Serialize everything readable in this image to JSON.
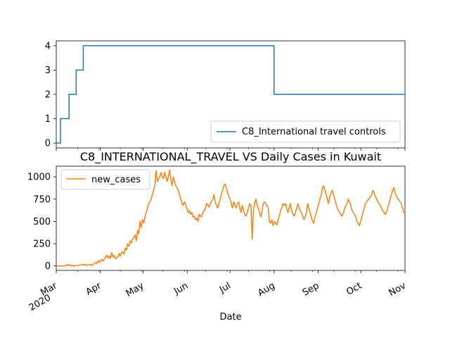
{
  "chart_data": [
    {
      "type": "line",
      "title": "",
      "xlabel": "",
      "ylabel": "",
      "ylim": [
        -0.2,
        4.2
      ],
      "yticks": [
        0,
        1,
        2,
        3,
        4
      ],
      "legend_position": "lower-right",
      "series": [
        {
          "name": "C8_International travel controls",
          "color": "#1f77b4",
          "points": [
            [
              "2020-03-01",
              0
            ],
            [
              "2020-03-04",
              0
            ],
            [
              "2020-03-04",
              1
            ],
            [
              "2020-03-10",
              1
            ],
            [
              "2020-03-10",
              2
            ],
            [
              "2020-03-15",
              2
            ],
            [
              "2020-03-15",
              3
            ],
            [
              "2020-03-20",
              3
            ],
            [
              "2020-03-20",
              4
            ],
            [
              "2020-08-01",
              4
            ],
            [
              "2020-08-01",
              2
            ],
            [
              "2020-11-01",
              2
            ]
          ]
        }
      ]
    },
    {
      "type": "line",
      "title": "C8_INTERNATIONAL_TRAVEL VS Daily Cases in Kuwait",
      "xlabel": "Date",
      "ylabel": "",
      "ylim": [
        -50,
        1120
      ],
      "yticks": [
        0,
        250,
        500,
        750,
        1000
      ],
      "xlim": [
        "2020-03-01",
        "2020-11-01"
      ],
      "xticks": [
        {
          "date": "2020-03-01",
          "label": "Mar",
          "label2": "2020"
        },
        {
          "date": "2020-04-01",
          "label": "Apr"
        },
        {
          "date": "2020-05-01",
          "label": "May"
        },
        {
          "date": "2020-06-01",
          "label": "Jun"
        },
        {
          "date": "2020-07-01",
          "label": "Jul"
        },
        {
          "date": "2020-08-01",
          "label": "Aug"
        },
        {
          "date": "2020-09-01",
          "label": "Sep"
        },
        {
          "date": "2020-10-01",
          "label": "Oct"
        },
        {
          "date": "2020-11-01",
          "label": "Nov"
        }
      ],
      "legend_position": "upper-left",
      "series": [
        {
          "name": "new_cases",
          "color": "#ff7f0e",
          "start_date": "2020-03-01",
          "values": [
            0,
            0,
            0,
            0,
            0,
            0,
            0,
            0,
            10,
            15,
            5,
            15,
            0,
            5,
            0,
            0,
            5,
            10,
            5,
            10,
            15,
            10,
            20,
            10,
            15,
            5,
            10,
            15,
            15,
            5,
            20,
            25,
            40,
            30,
            60,
            40,
            60,
            75,
            55,
            80,
            100,
            120,
            90,
            110,
            85,
            150,
            100,
            120,
            80,
            90,
            100,
            140,
            110,
            150,
            160,
            130,
            200,
            180,
            250,
            220,
            280,
            260,
            300,
            320,
            350,
            280,
            400,
            360,
            500,
            430,
            520,
            480,
            550,
            600,
            650,
            700,
            720,
            750,
            800,
            850,
            900,
            1070,
            950,
            980,
            1000,
            1050,
            1000,
            980,
            1050,
            1000,
            950,
            1000,
            1080,
            970,
            900,
            1000,
            950,
            900,
            880,
            850,
            800,
            750,
            700,
            680,
            720,
            690,
            650,
            600,
            620,
            580,
            600,
            550,
            560,
            520,
            540,
            500,
            580,
            560,
            550,
            600,
            620,
            650,
            700,
            680,
            660,
            700,
            720,
            750,
            800,
            720,
            680,
            650,
            700,
            750,
            800,
            850,
            900,
            920,
            880,
            820,
            780,
            760,
            700,
            650,
            720,
            680,
            650,
            700,
            720,
            650,
            600,
            680,
            620,
            580,
            560,
            600,
            650,
            700,
            680,
            300,
            620,
            700,
            750,
            680,
            650,
            600,
            550,
            620,
            700,
            720,
            700,
            680,
            650,
            500,
            480,
            520,
            450,
            500,
            480,
            460,
            520,
            560,
            620,
            650,
            700,
            680,
            700,
            640,
            600,
            650,
            700,
            620,
            580,
            560,
            600,
            640,
            700,
            650,
            620,
            600,
            560,
            520,
            550,
            600,
            700,
            650,
            600,
            550,
            500,
            480,
            550,
            600,
            650,
            700,
            750,
            800,
            880,
            900,
            850,
            800,
            750,
            700,
            780,
            820,
            850,
            800,
            750,
            700,
            650,
            620,
            600,
            580,
            560,
            600,
            640,
            680,
            700,
            750,
            720,
            680,
            620,
            600,
            580,
            550,
            500,
            480,
            450,
            500,
            550,
            600,
            650,
            700,
            720,
            740,
            760,
            780,
            800,
            850,
            820,
            780,
            750,
            720,
            700,
            680,
            650,
            620,
            600,
            580,
            600,
            650,
            700,
            750,
            800,
            850,
            880,
            820,
            780,
            760,
            740,
            720,
            700,
            650,
            600,
            590
          ]
        }
      ]
    }
  ]
}
